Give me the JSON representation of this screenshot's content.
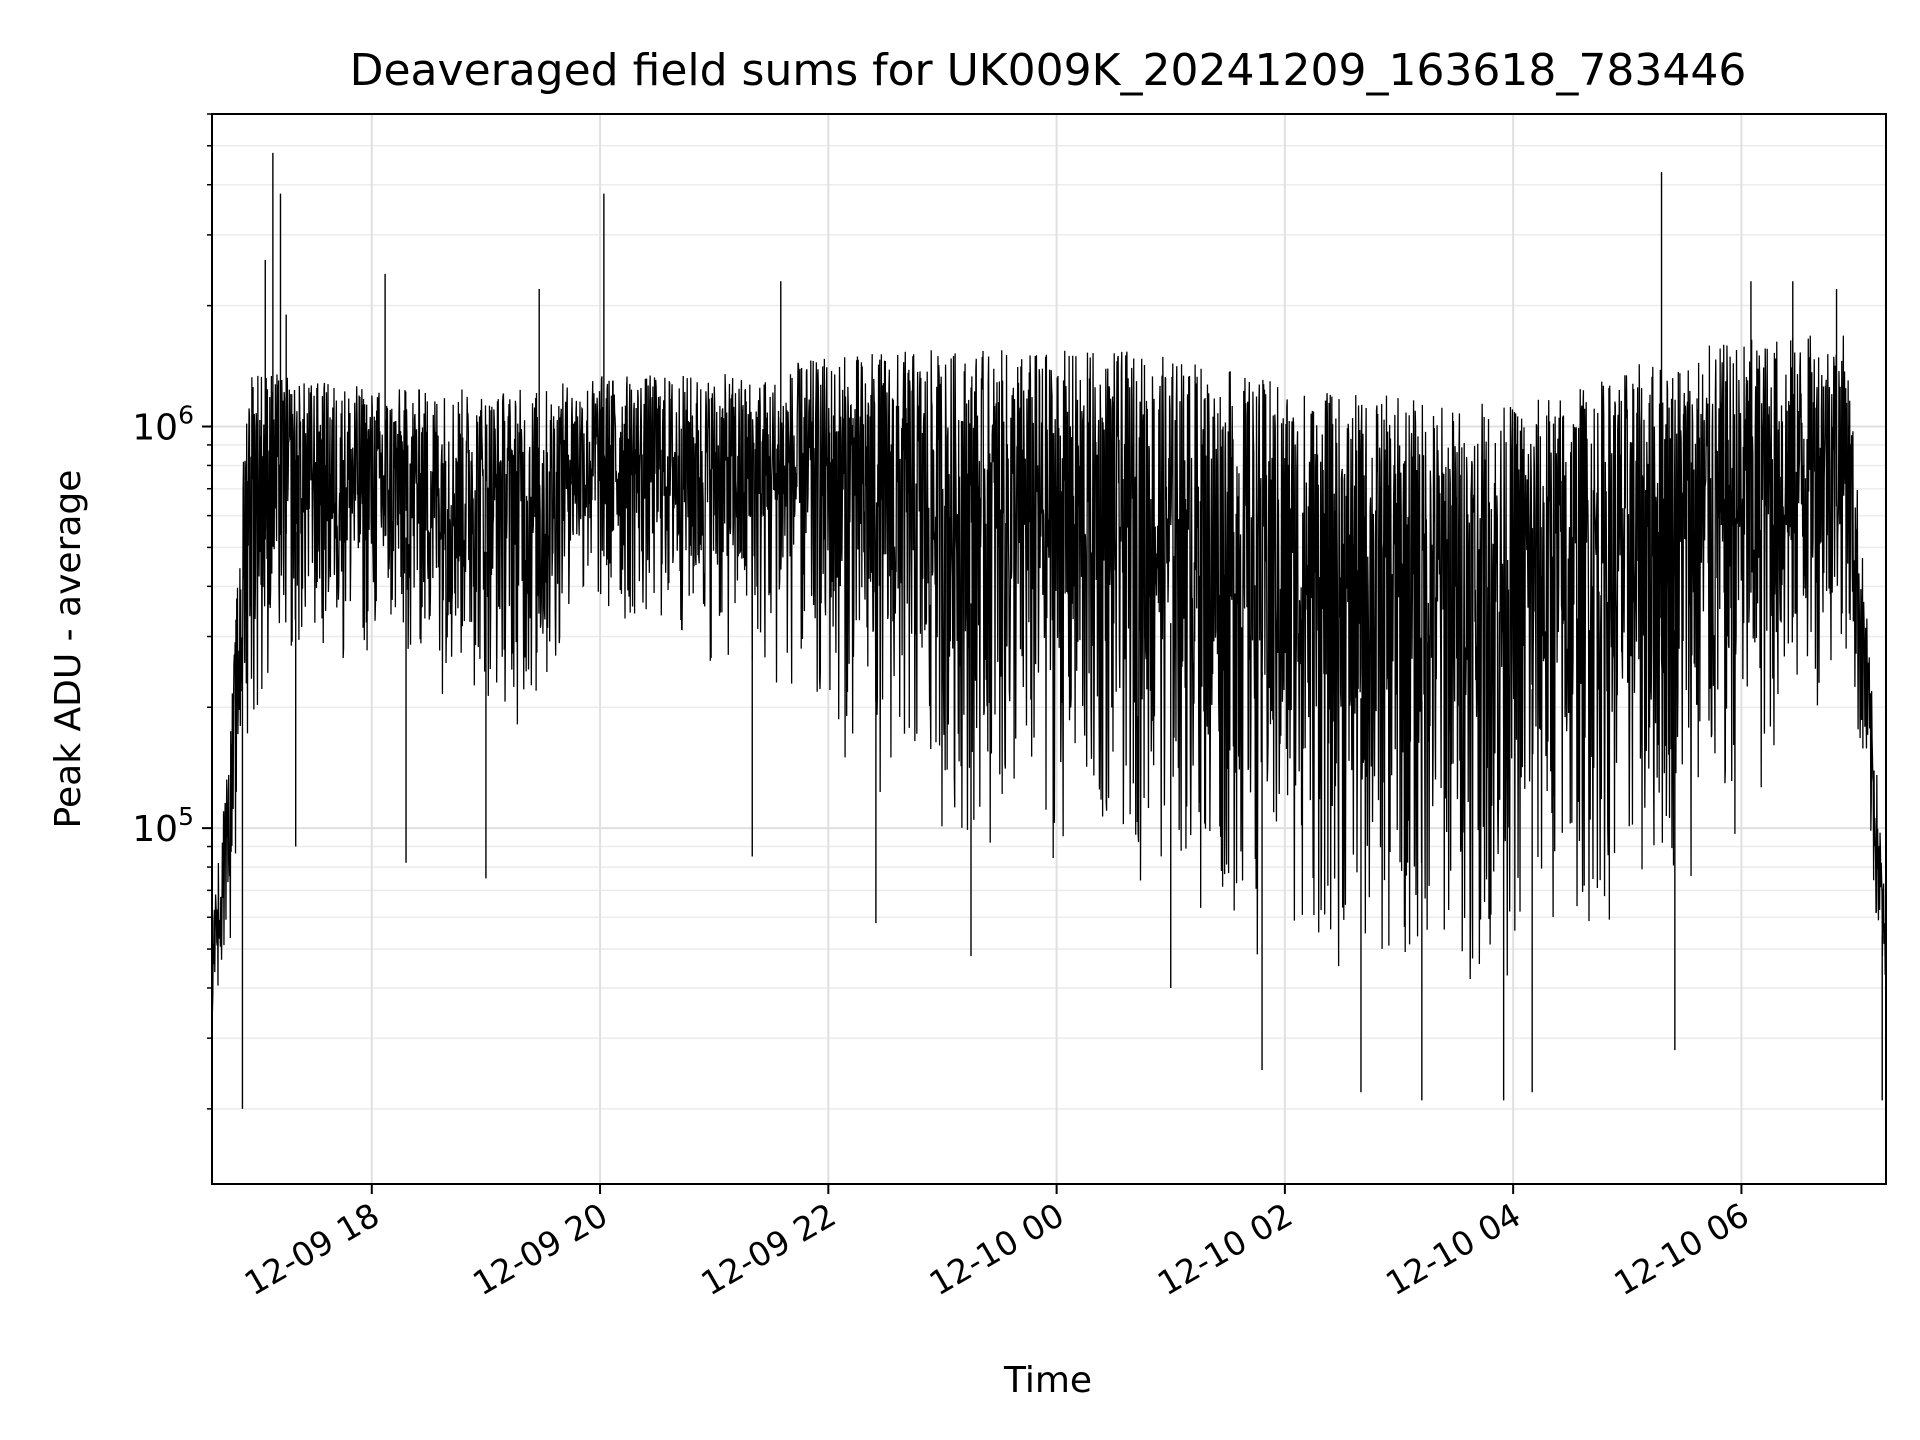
{
  "chart_data": {
    "type": "line",
    "title": "Deaveraged field sums for UK009K_20241209_163618_783446",
    "xlabel": "Time",
    "ylabel": "Peak ADU - average",
    "x_type": "datetime",
    "xlim": [
      "2024-12-09T16:36",
      "2024-12-10T07:16"
    ],
    "ylim": [
      13000,
      6000000
    ],
    "yscale": "log",
    "grid": true,
    "line_color": "#000000",
    "x_ticks": [
      {
        "value": "2024-12-09T18:00",
        "label": "12-09 18"
      },
      {
        "value": "2024-12-09T20:00",
        "label": "12-09 20"
      },
      {
        "value": "2024-12-09T22:00",
        "label": "12-09 22"
      },
      {
        "value": "2024-12-10T00:00",
        "label": "12-10 00"
      },
      {
        "value": "2024-12-10T02:00",
        "label": "12-10 02"
      },
      {
        "value": "2024-12-10T04:00",
        "label": "12-10 04"
      },
      {
        "value": "2024-12-10T06:00",
        "label": "12-10 06"
      }
    ],
    "y_ticks": [
      {
        "value": 100000,
        "base": "10",
        "exp": "5"
      },
      {
        "value": 1000000,
        "base": "10",
        "exp": "6"
      }
    ],
    "envelope": {
      "x": [
        "2024-12-09T16:36",
        "2024-12-09T16:45",
        "2024-12-09T16:55",
        "2024-12-09T17:05",
        "2024-12-09T17:20",
        "2024-12-09T17:40",
        "2024-12-09T18:00",
        "2024-12-09T18:30",
        "2024-12-09T19:00",
        "2024-12-09T19:30",
        "2024-12-09T19:45",
        "2024-12-09T20:00",
        "2024-12-09T20:30",
        "2024-12-09T21:00",
        "2024-12-09T21:30",
        "2024-12-09T21:45",
        "2024-12-09T22:00",
        "2024-12-09T22:30",
        "2024-12-09T23:00",
        "2024-12-09T23:30",
        "2024-12-10T00:00",
        "2024-12-10T00:30",
        "2024-12-10T01:00",
        "2024-12-10T01:20",
        "2024-12-10T01:40",
        "2024-12-10T02:00",
        "2024-12-10T02:30",
        "2024-12-10T03:00",
        "2024-12-10T03:30",
        "2024-12-10T04:00",
        "2024-12-10T04:30",
        "2024-12-10T05:00",
        "2024-12-10T05:30",
        "2024-12-10T06:00",
        "2024-12-10T06:30",
        "2024-12-10T06:55",
        "2024-12-10T07:05",
        "2024-12-10T07:16"
      ],
      "low": [
        30000,
        45000,
        150000,
        200000,
        230000,
        240000,
        230000,
        220000,
        190000,
        150000,
        350000,
        280000,
        280000,
        240000,
        200000,
        190000,
        150000,
        110000,
        90000,
        80000,
        75000,
        75000,
        70000,
        55000,
        45000,
        45000,
        38000,
        35000,
        38000,
        40000,
        45000,
        55000,
        65000,
        80000,
        160000,
        260000,
        90000,
        28000
      ],
      "high": [
        60000,
        150000,
        1500000,
        1400000,
        1300000,
        1300000,
        1250000,
        1250000,
        1250000,
        1250000,
        1300000,
        1350000,
        1350000,
        1350000,
        1350000,
        1450000,
        1500000,
        1550000,
        1550000,
        1550000,
        1550000,
        1550000,
        1500000,
        1450000,
        1350000,
        1300000,
        1200000,
        1200000,
        1150000,
        1150000,
        1250000,
        1400000,
        1550000,
        1650000,
        1700000,
        1700000,
        400000,
        60000
      ]
    },
    "spikes": [
      {
        "x": "2024-12-09T17:04",
        "y": 2600000
      },
      {
        "x": "2024-12-09T17:08",
        "y": 4800000
      },
      {
        "x": "2024-12-09T17:12",
        "y": 3800000
      },
      {
        "x": "2024-12-09T17:15",
        "y": 1900000
      },
      {
        "x": "2024-12-09T18:07",
        "y": 2400000
      },
      {
        "x": "2024-12-09T19:28",
        "y": 2200000
      },
      {
        "x": "2024-12-09T20:02",
        "y": 3800000
      },
      {
        "x": "2024-12-09T21:35",
        "y": 2300000
      },
      {
        "x": "2024-12-10T05:18",
        "y": 4300000
      },
      {
        "x": "2024-12-10T06:05",
        "y": 2300000
      },
      {
        "x": "2024-12-10T06:27",
        "y": 2300000
      },
      {
        "x": "2024-12-10T06:50",
        "y": 2200000
      },
      {
        "x": "2024-12-09T16:52",
        "y": 20000
      },
      {
        "x": "2024-12-09T17:20",
        "y": 90000
      },
      {
        "x": "2024-12-09T18:18",
        "y": 82000
      },
      {
        "x": "2024-12-09T19:00",
        "y": 75000
      },
      {
        "x": "2024-12-09T21:20",
        "y": 85000
      },
      {
        "x": "2024-12-09T22:25",
        "y": 58000
      },
      {
        "x": "2024-12-09T23:15",
        "y": 48000
      },
      {
        "x": "2024-12-10T01:00",
        "y": 40000
      },
      {
        "x": "2024-12-10T01:48",
        "y": 25000
      },
      {
        "x": "2024-12-10T02:40",
        "y": 22000
      },
      {
        "x": "2024-12-10T03:12",
        "y": 21000
      },
      {
        "x": "2024-12-10T03:55",
        "y": 21000
      },
      {
        "x": "2024-12-10T04:10",
        "y": 22000
      },
      {
        "x": "2024-12-10T05:25",
        "y": 28000
      },
      {
        "x": "2024-12-10T07:14",
        "y": 21000
      }
    ]
  }
}
